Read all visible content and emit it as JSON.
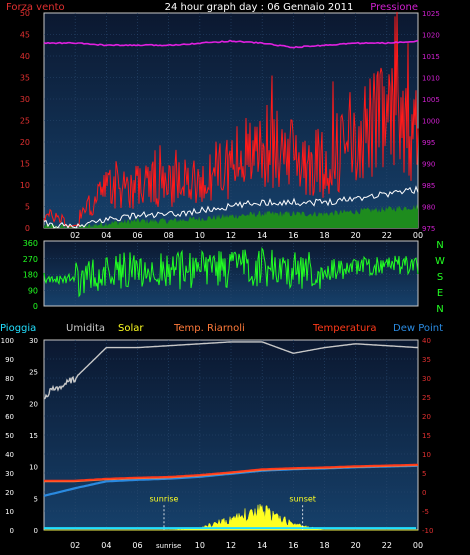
{
  "header": {
    "left_label": "Forza vento",
    "title": "24 hour graph day : 06 Gennaio 2011",
    "right_label": "Pressione"
  },
  "colors": {
    "background": "#000000",
    "plot_bg_top": "#0b1830",
    "plot_bg_bottom": "#16406a",
    "grid": "#2a4a70",
    "wind": "#ff1a1a",
    "wind_avg": "#ffffff",
    "wind_base": "#1e8c1e",
    "pressure": "#e020e0",
    "direction": "#22ff22",
    "humidity": "#c8c8c8",
    "solar": "#ffff22",
    "temperature": "#ff3a1a",
    "temp_riarnoli": "#ff7a3a",
    "dewpoint": "#2a8ae0",
    "rain": "#22e0ff",
    "axis_left": "#e03030",
    "axis_right": "#d020d0",
    "axis_green": "#22ff22",
    "tick_text": "#ffffff"
  },
  "x_axis": {
    "hours": [
      "02",
      "04",
      "06",
      "08",
      "10",
      "12",
      "14",
      "16",
      "18",
      "20",
      "22",
      "00"
    ]
  },
  "chart_data": [
    {
      "type": "line",
      "title": "24 hour graph day : 06 Gennaio 2011",
      "ylabel_left": "Forza vento",
      "ylabel_right": "Pressione",
      "ylim": [
        0,
        50
      ],
      "y2lim": [
        975,
        1025
      ],
      "y_ticks": [
        0,
        5,
        10,
        15,
        20,
        25,
        30,
        35,
        40,
        45,
        50
      ],
      "y2_ticks": [
        975,
        980,
        985,
        990,
        995,
        1000,
        1005,
        1010,
        1015,
        1020,
        1025
      ],
      "x": [
        0,
        2,
        4,
        6,
        8,
        10,
        12,
        14,
        16,
        18,
        20,
        22,
        24
      ],
      "series": [
        {
          "name": "Pressione",
          "axis": "right",
          "values": [
            1018,
            1018,
            1017.5,
            1017.5,
            1017.5,
            1018,
            1018.5,
            1018,
            1017,
            1017.5,
            1018,
            1018,
            1018.5
          ]
        },
        {
          "name": "Forza vento",
          "axis": "left",
          "values": [
            3,
            2,
            9,
            10,
            10,
            11,
            15,
            19,
            17,
            15,
            22,
            25,
            22
          ]
        },
        {
          "name": "Media vento",
          "axis": "left",
          "values": [
            1,
            0,
            2,
            3,
            3,
            4,
            5,
            6,
            6,
            6,
            7,
            8,
            9
          ]
        }
      ]
    },
    {
      "type": "line",
      "title": "",
      "y_ticks": [
        0,
        90,
        180,
        270,
        360
      ],
      "ylim": [
        0,
        360
      ],
      "direction_labels": [
        "N",
        "W",
        "S",
        "E",
        "N"
      ],
      "x": [
        0,
        2,
        4,
        6,
        8,
        10,
        12,
        14,
        16,
        18,
        20,
        22,
        24
      ],
      "series": [
        {
          "name": "",
          "values": [
            160,
            150,
            200,
            210,
            200,
            210,
            210,
            220,
            210,
            205,
            220,
            225,
            240
          ]
        }
      ]
    },
    {
      "type": "line",
      "legend": [
        "Pioggia",
        "Umidita",
        "Solar",
        "Temp. Riarnoli",
        "Temperatura",
        "Dew Point"
      ],
      "ylim": [
        0,
        100
      ],
      "y_ticks": [
        0,
        10,
        20,
        30,
        40,
        50,
        60,
        70,
        80,
        90,
        100
      ],
      "y2lim": [
        -10,
        40
      ],
      "y2_ticks": [
        -10,
        -5,
        0,
        5,
        10,
        15,
        20,
        25,
        30,
        35,
        40
      ],
      "y3_ticks": [
        0,
        5,
        10,
        15,
        20,
        25,
        30
      ],
      "x": [
        0,
        2,
        4,
        6,
        8,
        10,
        12,
        14,
        16,
        18,
        20,
        22,
        24
      ],
      "series": [
        {
          "name": "Umidita",
          "axis": "left",
          "values": [
            71,
            80,
            96,
            96,
            97,
            98,
            99,
            99,
            93,
            96,
            98,
            97,
            96
          ]
        },
        {
          "name": "Temperatura",
          "axis": "right",
          "values": [
            3,
            3,
            3.5,
            3.8,
            4,
            4.5,
            5.2,
            6,
            6.3,
            6.5,
            6.8,
            7,
            7.2
          ]
        },
        {
          "name": "Temp. Riarnoli",
          "axis": "right",
          "values": [
            2.8,
            2.8,
            3.3,
            3.6,
            3.8,
            4.3,
            5,
            5.8,
            6.1,
            6.3,
            6.6,
            6.8,
            7
          ]
        },
        {
          "name": "Dew Point",
          "axis": "right",
          "values": [
            -1,
            1,
            2.8,
            3.2,
            3.5,
            4,
            4.8,
            5.6,
            6,
            6.2,
            6.5,
            6.7,
            6.9
          ]
        },
        {
          "name": "Solar",
          "axis": "left",
          "values": [
            0,
            0,
            0,
            0,
            0,
            1,
            6,
            11,
            3,
            0,
            0,
            0,
            0
          ]
        },
        {
          "name": "Pioggia",
          "axis": "left",
          "values": [
            1,
            1,
            1,
            1,
            1,
            1,
            1,
            1,
            1,
            1,
            1,
            1,
            1
          ]
        }
      ],
      "annotations": [
        {
          "label": "sunrise",
          "hour": 7.7
        },
        {
          "label": "sunset",
          "hour": 16.6
        }
      ],
      "x_label_extra": "sunrise"
    }
  ]
}
